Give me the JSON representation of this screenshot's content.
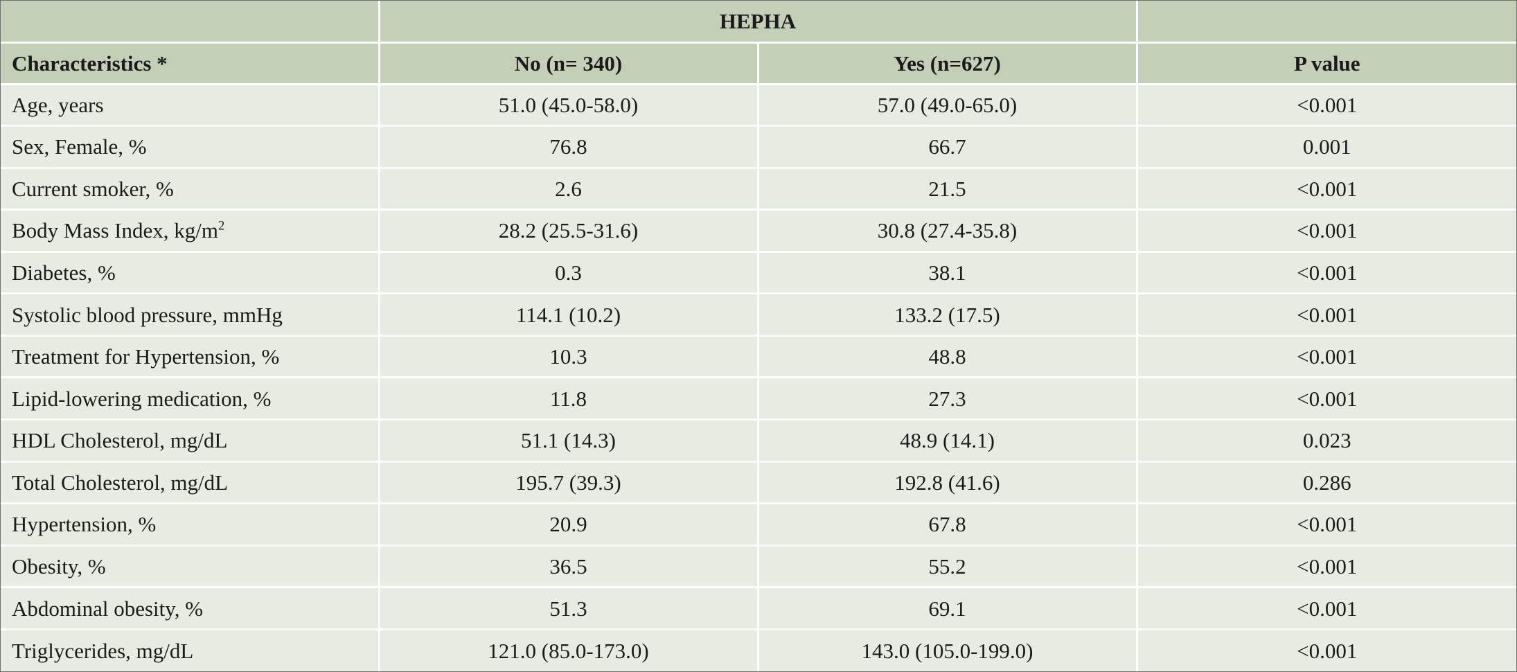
{
  "table": {
    "group_header": "HEPHA",
    "columns": [
      "Characteristics *",
      "No (n= 340)",
      "Yes (n=627)",
      "P value"
    ],
    "rows": [
      {
        "label": "Age, years",
        "no": "51.0 (45.0-58.0)",
        "yes": "57.0 (49.0-65.0)",
        "p": "<0.001"
      },
      {
        "label": "Sex, Female, %",
        "no": "76.8",
        "yes": "66.7",
        "p": "0.001"
      },
      {
        "label": "Current smoker, %",
        "no": "2.6",
        "yes": "21.5",
        "p": "<0.001"
      },
      {
        "label": "Body Mass Index, kg/m",
        "label_sup": "2",
        "no": "28.2 (25.5-31.6)",
        "yes": "30.8 (27.4-35.8)",
        "p": "<0.001"
      },
      {
        "label": "Diabetes, %",
        "no": "0.3",
        "yes": "38.1",
        "p": "<0.001"
      },
      {
        "label": "Systolic blood pressure, mmHg",
        "no": "114.1 (10.2)",
        "yes": "133.2 (17.5)",
        "p": "<0.001"
      },
      {
        "label": "Treatment for Hypertension, %",
        "no": "10.3",
        "yes": "48.8",
        "p": "<0.001"
      },
      {
        "label": "Lipid-lowering medication, %",
        "no": "11.8",
        "yes": "27.3",
        "p": "<0.001"
      },
      {
        "label": "HDL Cholesterol, mg/dL",
        "no": "51.1 (14.3)",
        "yes": "48.9 (14.1)",
        "p": "0.023"
      },
      {
        "label": "Total Cholesterol, mg/dL",
        "no": "195.7 (39.3)",
        "yes": "192.8 (41.6)",
        "p": "0.286"
      },
      {
        "label": "Hypertension, %",
        "no": "20.9",
        "yes": "67.8",
        "p": "<0.001"
      },
      {
        "label": "Obesity, %",
        "no": "36.5",
        "yes": "55.2",
        "p": "<0.001"
      },
      {
        "label": "Abdominal obesity, %",
        "no": "51.3",
        "yes": "69.1",
        "p": "<0.001"
      },
      {
        "label": "Triglycerides, mg/dL",
        "no": "121.0 (85.0-173.0)",
        "yes": "143.0 (105.0-199.0)",
        "p": "<0.001"
      }
    ]
  }
}
